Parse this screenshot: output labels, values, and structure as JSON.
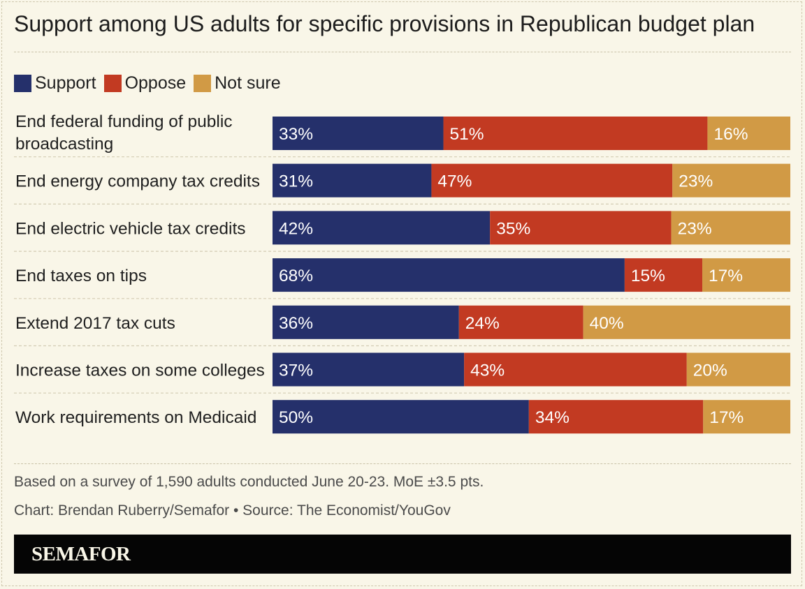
{
  "title": "Support among US adults for specific provisions in Republican budget plan",
  "legend": [
    {
      "label": "Support",
      "color": "#25306b"
    },
    {
      "label": "Oppose",
      "color": "#c23a22"
    },
    {
      "label": "Not sure",
      "color": "#d19a45"
    }
  ],
  "chart_data": {
    "type": "bar",
    "orientation": "horizontal",
    "stacked": true,
    "value_suffix": "%",
    "categories": [
      "End federal funding of public broadcasting",
      "End energy company tax credits",
      "End electric vehicle tax credits",
      "End taxes on tips",
      "Extend 2017 tax cuts",
      "Increase taxes on some colleges",
      "Work requirements on Medicaid"
    ],
    "series": [
      {
        "name": "Support",
        "color": "#25306b",
        "values": [
          33,
          31,
          42,
          68,
          36,
          37,
          50
        ]
      },
      {
        "name": "Oppose",
        "color": "#c23a22",
        "values": [
          51,
          47,
          35,
          15,
          24,
          43,
          34
        ]
      },
      {
        "name": "Not sure",
        "color": "#d19a45",
        "values": [
          16,
          23,
          23,
          17,
          40,
          20,
          17
        ]
      }
    ],
    "xlabel": "",
    "ylabel": ""
  },
  "footnotes": {
    "survey": "Based on a survey of 1,590 adults conducted June 20-23. MoE ±3.5 pts.",
    "credit": "Chart: Brendan Ruberry/Semafor • Source: The Economist/YouGov"
  },
  "brand": "SEMAFOR"
}
